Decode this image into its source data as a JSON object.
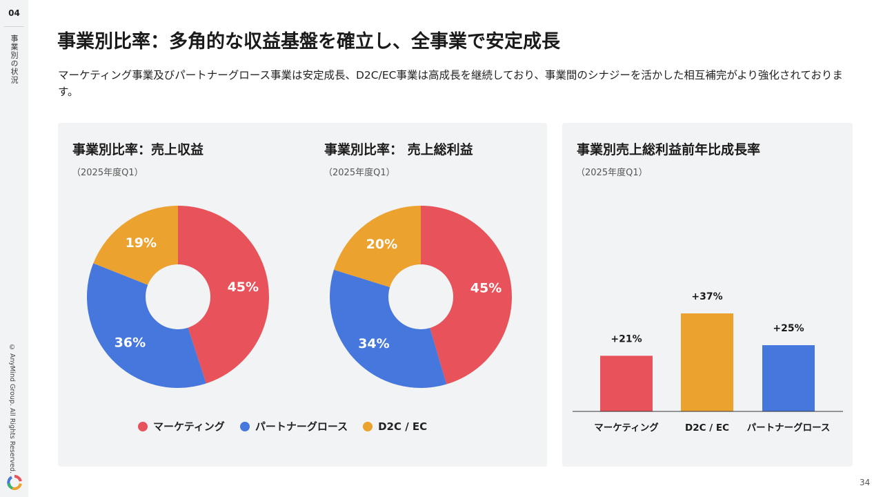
{
  "sidebar": {
    "section_number": "04",
    "section_title": "事業別の状況",
    "copyright": "© AnyMind Group. All Rights Reserved."
  },
  "title": "事業別比率：多角的な収益基盤を確立し、全事業で安定成長",
  "lead": "マーケティング事業及びパートナーグロース事業は安定成長、D2C/EC事業は高成長を継続しており、事業間のシナジーを活かした相互補完がより強化されております。",
  "colors": {
    "marketing": "#e8525a",
    "partner": "#4677dc",
    "d2c": "#eca22f"
  },
  "charts": {
    "revenue": {
      "title": "事業別比率：売上収益",
      "subtitle": "（2025年度Q1）"
    },
    "gross_profit": {
      "title": "事業別比率： 売上総利益",
      "subtitle": "（2025年度Q1）"
    },
    "growth": {
      "title": "事業別売上総利益前年比成長率",
      "subtitle": "（2025年度Q1）"
    }
  },
  "legend": [
    {
      "label": "マーケティング",
      "color": "#e8525a"
    },
    {
      "label": "パートナーグロース",
      "color": "#4677dc"
    },
    {
      "label": "D2C / EC",
      "color": "#eca22f"
    }
  ],
  "chart_data": [
    {
      "type": "pie",
      "title": "事業別比率：売上収益",
      "subtitle": "（2025年度Q1）",
      "categories": [
        "マーケティング",
        "パートナーグロース",
        "D2C / EC"
      ],
      "values": [
        45,
        36,
        19
      ],
      "labels": [
        "45%",
        "36%",
        "19%"
      ],
      "colors": [
        "#e8525a",
        "#4677dc",
        "#eca22f"
      ]
    },
    {
      "type": "pie",
      "title": "事業別比率： 売上総利益",
      "subtitle": "（2025年度Q1）",
      "categories": [
        "マーケティング",
        "パートナーグロース",
        "D2C / EC"
      ],
      "values": [
        45,
        34,
        20
      ],
      "labels": [
        "45%",
        "34%",
        "20%"
      ],
      "colors": [
        "#e8525a",
        "#4677dc",
        "#eca22f"
      ]
    },
    {
      "type": "bar",
      "title": "事業別売上総利益前年比成長率",
      "subtitle": "（2025年度Q1）",
      "categories": [
        "マーケティング",
        "D2C / EC",
        "パートナーグロース"
      ],
      "values": [
        21,
        37,
        25
      ],
      "labels": [
        "+21%",
        "+37%",
        "+25%"
      ],
      "colors": [
        "#e8525a",
        "#eca22f",
        "#4677dc"
      ]
    }
  ],
  "page_number": "34"
}
